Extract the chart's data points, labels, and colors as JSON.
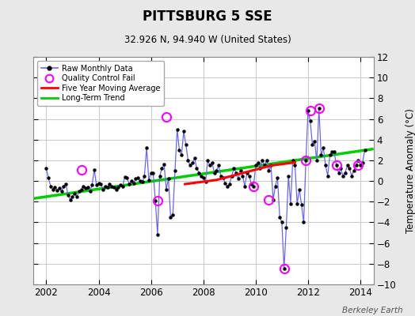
{
  "title": "PITTSBURG 5 SSE",
  "subtitle": "32.926 N, 94.940 W (United States)",
  "ylabel": "Temperature Anomaly (°C)",
  "credit": "Berkeley Earth",
  "ylim": [
    -10,
    12
  ],
  "xlim": [
    2001.5,
    2014.5
  ],
  "xticks": [
    2002,
    2004,
    2006,
    2008,
    2010,
    2012,
    2014
  ],
  "yticks": [
    -10,
    -8,
    -6,
    -4,
    -2,
    0,
    2,
    4,
    6,
    8,
    10,
    12
  ],
  "fig_bg_color": "#e8e8e8",
  "plot_bg_color": "#ffffff",
  "grid_color": "#cccccc",
  "raw_color": "#6666ff",
  "dot_color": "black",
  "qc_color": "#ff00ff",
  "ma_color": "red",
  "trend_color": "#00cc00",
  "raw_x": [
    2002.0,
    2002.083,
    2002.167,
    2002.25,
    2002.333,
    2002.417,
    2002.5,
    2002.583,
    2002.667,
    2002.75,
    2002.833,
    2002.917,
    2003.0,
    2003.083,
    2003.167,
    2003.25,
    2003.333,
    2003.417,
    2003.5,
    2003.583,
    2003.667,
    2003.75,
    2003.833,
    2003.917,
    2004.0,
    2004.083,
    2004.167,
    2004.25,
    2004.333,
    2004.417,
    2004.5,
    2004.583,
    2004.667,
    2004.75,
    2004.833,
    2004.917,
    2005.0,
    2005.083,
    2005.167,
    2005.25,
    2005.333,
    2005.417,
    2005.5,
    2005.583,
    2005.667,
    2005.75,
    2005.833,
    2005.917,
    2006.0,
    2006.083,
    2006.167,
    2006.25,
    2006.333,
    2006.417,
    2006.5,
    2006.583,
    2006.667,
    2006.75,
    2006.833,
    2006.917,
    2007.0,
    2007.083,
    2007.167,
    2007.25,
    2007.333,
    2007.417,
    2007.5,
    2007.583,
    2007.667,
    2007.75,
    2007.833,
    2007.917,
    2008.0,
    2008.083,
    2008.167,
    2008.25,
    2008.333,
    2008.417,
    2008.5,
    2008.583,
    2008.667,
    2008.75,
    2008.833,
    2008.917,
    2009.0,
    2009.083,
    2009.167,
    2009.25,
    2009.333,
    2009.417,
    2009.5,
    2009.583,
    2009.667,
    2009.75,
    2009.833,
    2009.917,
    2010.0,
    2010.083,
    2010.167,
    2010.25,
    2010.333,
    2010.417,
    2010.5,
    2010.583,
    2010.667,
    2010.75,
    2010.833,
    2010.917,
    2011.0,
    2011.083,
    2011.167,
    2011.25,
    2011.333,
    2011.417,
    2011.5,
    2011.583,
    2011.667,
    2011.75,
    2011.833,
    2011.917,
    2012.0,
    2012.083,
    2012.167,
    2012.25,
    2012.333,
    2012.417,
    2012.5,
    2012.583,
    2012.667,
    2012.75,
    2012.833,
    2012.917,
    2013.0,
    2013.083,
    2013.167,
    2013.25,
    2013.333,
    2013.417,
    2013.5,
    2013.583,
    2013.667,
    2013.75,
    2013.833,
    2013.917,
    2014.0,
    2014.083,
    2014.167
  ],
  "raw_y": [
    1.2,
    0.3,
    -0.5,
    -0.8,
    -0.6,
    -0.9,
    -0.7,
    -1.0,
    -0.5,
    -0.3,
    -1.4,
    -1.8,
    -1.5,
    -1.2,
    -1.5,
    -1.0,
    -0.8,
    -0.5,
    -0.7,
    -0.6,
    -1.0,
    -0.4,
    1.1,
    -0.4,
    -0.2,
    -0.3,
    -0.8,
    -0.5,
    -0.6,
    -0.3,
    -0.5,
    -0.6,
    -0.8,
    -0.6,
    -0.4,
    -0.5,
    0.4,
    0.3,
    -0.3,
    0.0,
    -0.2,
    0.2,
    0.3,
    0.0,
    -0.1,
    0.5,
    3.2,
    0.1,
    0.8,
    0.8,
    -1.9,
    -5.2,
    0.5,
    1.2,
    1.6,
    -0.8,
    0.2,
    -3.5,
    -3.3,
    1.0,
    5.0,
    3.0,
    2.5,
    4.8,
    3.5,
    2.0,
    1.5,
    1.8,
    2.2,
    1.2,
    0.8,
    0.5,
    0.3,
    -0.1,
    2.0,
    1.5,
    1.8,
    0.8,
    1.0,
    1.5,
    0.5,
    0.3,
    -0.2,
    -0.5,
    -0.3,
    0.5,
    1.2,
    0.8,
    0.2,
    1.0,
    0.5,
    -0.5,
    0.8,
    0.5,
    -0.3,
    -0.5,
    1.5,
    1.8,
    1.2,
    2.0,
    1.5,
    2.0,
    1.0,
    1.5,
    -1.8,
    -0.5,
    0.3,
    -3.5,
    -4.0,
    -8.5,
    -4.5,
    0.5,
    -2.2,
    2.0,
    1.5,
    -2.2,
    -0.8,
    -2.3,
    -4.0,
    2.0,
    6.8,
    5.8,
    3.5,
    3.8,
    2.0,
    7.0,
    2.5,
    3.2,
    1.5,
    0.5,
    2.5,
    2.8,
    2.8,
    1.5,
    0.8,
    1.2,
    0.5,
    0.8,
    1.5,
    1.2,
    0.5,
    1.0,
    1.5,
    2.0,
    1.5,
    1.8,
    3.0
  ],
  "qc_x": [
    2003.333,
    2006.25,
    2006.583,
    2009.917,
    2010.5,
    2011.083,
    2011.917,
    2012.083,
    2012.417,
    2013.083,
    2013.917
  ],
  "qc_y": [
    1.1,
    -1.9,
    6.2,
    -0.5,
    -1.8,
    -8.5,
    2.0,
    6.8,
    7.0,
    1.5,
    1.5
  ],
  "trend_x": [
    2001.5,
    2014.5
  ],
  "trend_y": [
    -1.7,
    3.1
  ],
  "ma_x": [
    2007.3,
    2007.6,
    2007.9,
    2008.2,
    2008.5,
    2008.8,
    2009.1,
    2009.4,
    2009.7,
    2010.0,
    2010.3,
    2010.6,
    2010.9,
    2011.2,
    2011.5
  ],
  "ma_y": [
    -0.3,
    -0.2,
    -0.1,
    0.0,
    0.1,
    0.3,
    0.5,
    0.7,
    0.9,
    1.1,
    1.3,
    1.5,
    1.6,
    1.7,
    1.8
  ]
}
